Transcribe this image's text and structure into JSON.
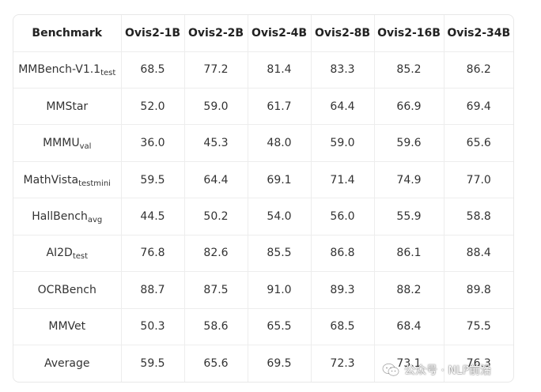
{
  "table": {
    "headers": [
      "Benchmark",
      "Ovis2-1B",
      "Ovis2-2B",
      "Ovis2-4B",
      "Ovis2-8B",
      "Ovis2-16B",
      "Ovis2-34B"
    ],
    "rows": [
      {
        "benchmark": "MMBench-V1.1",
        "sub": "test",
        "values": [
          "68.5",
          "77.2",
          "81.4",
          "83.3",
          "85.2",
          "86.2"
        ]
      },
      {
        "benchmark": "MMStar",
        "sub": "",
        "values": [
          "52.0",
          "59.0",
          "61.7",
          "64.4",
          "66.9",
          "69.4"
        ]
      },
      {
        "benchmark": "MMMU",
        "sub": "val",
        "values": [
          "36.0",
          "45.3",
          "48.0",
          "59.0",
          "59.6",
          "65.6"
        ]
      },
      {
        "benchmark": "MathVista",
        "sub": "testmini",
        "values": [
          "59.5",
          "64.4",
          "69.1",
          "71.4",
          "74.9",
          "77.0"
        ]
      },
      {
        "benchmark": "HallBench",
        "sub": "avg",
        "values": [
          "44.5",
          "50.2",
          "54.0",
          "56.0",
          "55.9",
          "58.8"
        ]
      },
      {
        "benchmark": "AI2D",
        "sub": "test",
        "values": [
          "76.8",
          "82.6",
          "85.5",
          "86.8",
          "86.1",
          "88.4"
        ]
      },
      {
        "benchmark": "OCRBench",
        "sub": "",
        "values": [
          "88.7",
          "87.5",
          "91.0",
          "89.3",
          "88.2",
          "89.8"
        ]
      },
      {
        "benchmark": "MMVet",
        "sub": "",
        "values": [
          "50.3",
          "58.6",
          "65.5",
          "68.5",
          "68.4",
          "75.5"
        ]
      },
      {
        "benchmark": "Average",
        "sub": "",
        "values": [
          "59.5",
          "65.6",
          "69.5",
          "72.3",
          "73.1",
          "76.3"
        ]
      }
    ]
  },
  "watermark": {
    "icon": "wechat-icon",
    "text": "公众号 · NLP前沿"
  }
}
